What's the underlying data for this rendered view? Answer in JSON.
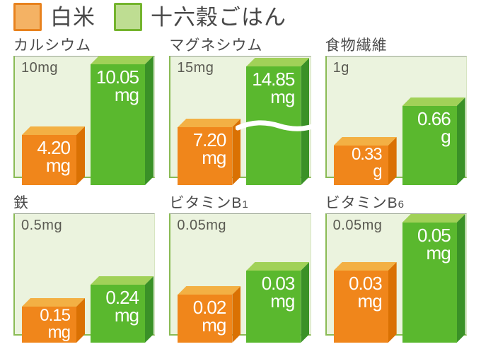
{
  "legend": {
    "items": [
      {
        "label": "白米",
        "color": "#f0861b",
        "swatch_fill": "#f4b264",
        "swatch_border": "#e8821e"
      },
      {
        "label": "十六穀ごはん",
        "color": "#5ab82e",
        "swatch_fill": "#bedd92",
        "swatch_border": "#74b42d"
      }
    ]
  },
  "colors": {
    "white_rice_bar": {
      "front": "#f0861b",
      "top": "#f3b044",
      "side": "#da7103"
    },
    "multigrain_bar": {
      "front": "#5ab82e",
      "top": "#a1d158",
      "side": "#3a9127"
    },
    "panel_background": "#ebf3de",
    "panel_axis_green": "#8abb55",
    "value_text": "#ffffff",
    "title_text": "#4a4a4a"
  },
  "charts": [
    {
      "title": "カルシウム",
      "title_sub": "",
      "scale_label": "10mg",
      "scale": 10,
      "bars": [
        {
          "series": "白米",
          "value": 4.2,
          "value_text": "4.20",
          "unit": "mg",
          "break": false
        },
        {
          "series": "十六穀ごはん",
          "value": 10.05,
          "value_text": "10.05",
          "unit": "mg",
          "break": false
        }
      ]
    },
    {
      "title": "マグネシウム",
      "title_sub": "",
      "scale_label": "15mg",
      "scale": 15,
      "bars": [
        {
          "series": "白米",
          "value": 7.2,
          "value_text": "7.20",
          "unit": "mg",
          "break": false
        },
        {
          "series": "十六穀ごはん",
          "value": 14.85,
          "value_text": "14.85",
          "unit": "mg",
          "break": true
        }
      ]
    },
    {
      "title": "食物繊維",
      "title_sub": "",
      "scale_label": "1g",
      "scale": 1,
      "bars": [
        {
          "series": "白米",
          "value": 0.33,
          "value_text": "0.33",
          "unit": "g",
          "break": false
        },
        {
          "series": "十六穀ごはん",
          "value": 0.66,
          "value_text": "0.66",
          "unit": "g",
          "break": false
        }
      ]
    },
    {
      "title": "鉄",
      "title_sub": "",
      "scale_label": "0.5mg",
      "scale": 0.5,
      "bars": [
        {
          "series": "白米",
          "value": 0.15,
          "value_text": "0.15",
          "unit": "mg",
          "break": false
        },
        {
          "series": "十六穀ごはん",
          "value": 0.24,
          "value_text": "0.24",
          "unit": "mg",
          "break": false
        }
      ]
    },
    {
      "title": "ビタミンB",
      "title_sub": "1",
      "scale_label": "0.05mg",
      "scale": 0.05,
      "bars": [
        {
          "series": "白米",
          "value": 0.02,
          "value_text": "0.02",
          "unit": "mg",
          "break": false
        },
        {
          "series": "十六穀ごはん",
          "value": 0.03,
          "value_text": "0.03",
          "unit": "mg",
          "break": false
        }
      ]
    },
    {
      "title": "ビタミンB",
      "title_sub": "6",
      "scale_label": "0.05mg",
      "scale": 0.05,
      "bars": [
        {
          "series": "白米",
          "value": 0.03,
          "value_text": "0.03",
          "unit": "mg",
          "break": false
        },
        {
          "series": "十六穀ごはん",
          "value": 0.05,
          "value_text": "0.05",
          "unit": "mg",
          "break": false
        }
      ]
    }
  ],
  "chart_data": {
    "type": "bar",
    "categories": [
      "カルシウム",
      "マグネシウム",
      "食物繊維",
      "鉄",
      "ビタミンB1",
      "ビタミンB6"
    ],
    "series": [
      {
        "name": "白米",
        "values": [
          4.2,
          7.2,
          0.33,
          0.15,
          0.02,
          0.03
        ]
      },
      {
        "name": "十六穀ごはん",
        "values": [
          10.05,
          14.85,
          0.66,
          0.24,
          0.03,
          0.05
        ]
      }
    ],
    "units": [
      "mg",
      "mg",
      "g",
      "mg",
      "mg",
      "mg"
    ],
    "axis_max": [
      10,
      15,
      1,
      0.5,
      0.05,
      0.05
    ],
    "axis_max_labels": [
      "10mg",
      "15mg",
      "1g",
      "0.5mg",
      "0.05mg",
      "0.05mg"
    ],
    "data_labels": [
      [
        "4.20 mg",
        "7.20 mg",
        "0.33 g",
        "0.15 mg",
        "0.02 mg",
        "0.03 mg"
      ],
      [
        "10.05 mg",
        "14.85 mg",
        "0.66 g",
        "0.24 mg",
        "0.03 mg",
        "0.05 mg"
      ]
    ],
    "legend_position": "top",
    "grid": false,
    "axis_break": [
      {
        "category": "マグネシウム",
        "series": "十六穀ごはん"
      }
    ]
  }
}
